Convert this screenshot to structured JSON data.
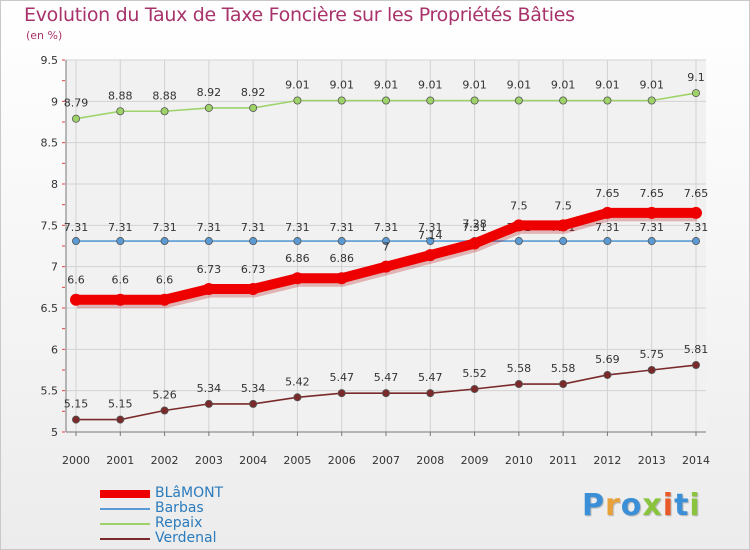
{
  "title": "Evolution du Taux de Taxe Foncière sur les Propriétés Bâties",
  "subtitle": "(en %)",
  "logo": {
    "letters": [
      "P",
      "r",
      "o",
      "x",
      "i",
      "t",
      "i"
    ],
    "colors": [
      "#3a8fd6",
      "#e8a13a",
      "#3a8fd6",
      "#8ac43f",
      "#e85a2a",
      "#3a8fd6",
      "#8ac43f"
    ]
  },
  "chart_data": {
    "type": "line",
    "title": "Evolution du Taux de Taxe Foncière sur les Propriétés Bâties",
    "ylabel": "(en %)",
    "x": [
      "2000",
      "2001",
      "2002",
      "2003",
      "2004",
      "2005",
      "2006",
      "2007",
      "2008",
      "2009",
      "2010",
      "2011",
      "2012",
      "2013",
      "2014"
    ],
    "ylim": [
      5,
      9.5
    ],
    "yticks": [
      "5",
      "5.5",
      "6",
      "6.5",
      "7",
      "7.5",
      "8",
      "8.5",
      "9",
      "9.5"
    ],
    "grid": true,
    "legend_position": "bottom-left",
    "series": [
      {
        "name": "BLâMONT",
        "color": "#ee0000",
        "values": [
          6.6,
          6.6,
          6.6,
          6.73,
          6.73,
          6.86,
          6.86,
          7,
          7.14,
          7.28,
          7.5,
          7.5,
          7.65,
          7.65,
          7.65
        ],
        "labels": [
          "6.6",
          "6.6",
          "6.6",
          "6.73",
          "6.73",
          "6.86",
          "6.86",
          "7",
          "7.14",
          "7.28",
          "7.5",
          "7.5",
          "7.65",
          "7.65",
          "7.65"
        ]
      },
      {
        "name": "Barbas",
        "color": "#5b9bd5",
        "values": [
          7.31,
          7.31,
          7.31,
          7.31,
          7.31,
          7.31,
          7.31,
          7.31,
          7.31,
          7.31,
          7.31,
          7.31,
          7.31,
          7.31,
          7.31
        ],
        "labels": [
          "7.31",
          "7.31",
          "7.31",
          "7.31",
          "7.31",
          "7.31",
          "7.31",
          "7.31",
          "7.31",
          "7.31",
          "7.31",
          "7.31",
          "7.31",
          "7.31",
          "7.31"
        ]
      },
      {
        "name": "Repaix",
        "color": "#9ed36a",
        "values": [
          8.79,
          8.88,
          8.88,
          8.92,
          8.92,
          9.01,
          9.01,
          9.01,
          9.01,
          9.01,
          9.01,
          9.01,
          9.01,
          9.01,
          9.1
        ],
        "labels": [
          "8.79",
          "8.88",
          "8.88",
          "8.92",
          "8.92",
          "9.01",
          "9.01",
          "9.01",
          "9.01",
          "9.01",
          "9.01",
          "9.01",
          "9.01",
          "9.01",
          "9.1"
        ]
      },
      {
        "name": "Verdenal",
        "color": "#7a2a2a",
        "values": [
          5.15,
          5.15,
          5.26,
          5.34,
          5.34,
          5.42,
          5.47,
          5.47,
          5.47,
          5.52,
          5.58,
          5.58,
          5.69,
          5.75,
          5.81
        ],
        "labels": [
          "5.15",
          "5.15",
          "5.26",
          "5.34",
          "5.34",
          "5.42",
          "5.47",
          "5.47",
          "5.47",
          "5.52",
          "5.58",
          "5.58",
          "5.69",
          "5.75",
          "5.81"
        ]
      }
    ]
  }
}
